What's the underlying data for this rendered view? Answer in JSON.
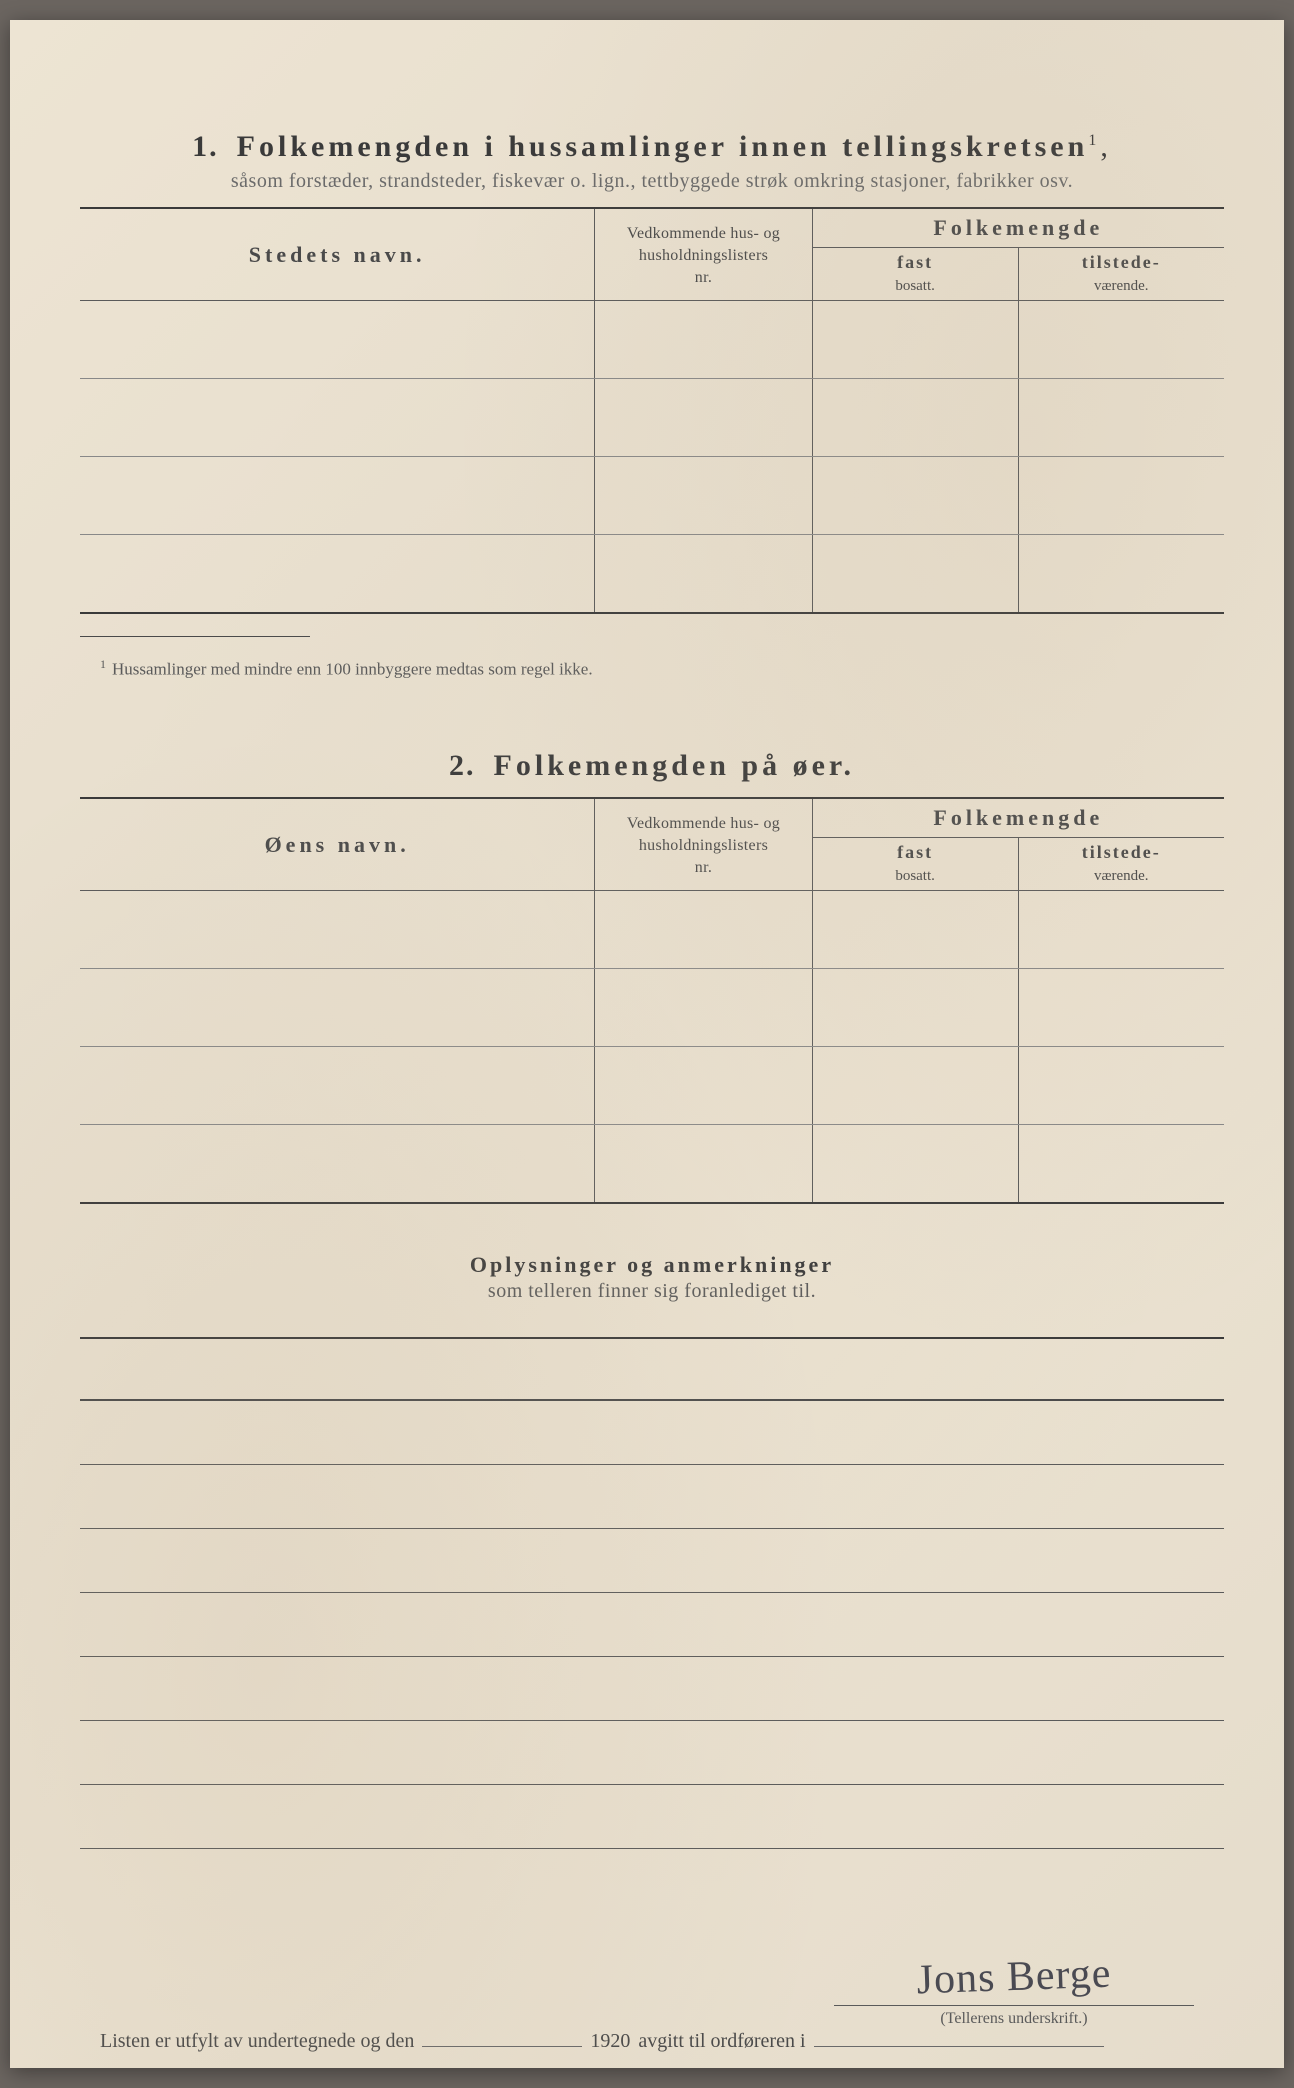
{
  "colors": {
    "paper_bg": "#ebe2d1",
    "text_primary": "#3a3a3a",
    "text_secondary": "#5a5a5a",
    "border": "#5a5a5a",
    "border_thick": "#3a3a3a"
  },
  "section1": {
    "number": "1.",
    "title": "Folkemengden i hussamlinger innen tellingskretsen",
    "title_sup": "1",
    "title_suffix": ",",
    "subtitle": "såsom forstæder, strandsteder, fiskevær o. lign., tettbyggede strøk omkring stasjoner, fabrikker osv.",
    "columns": {
      "name": "Stedets navn.",
      "ref_l1": "Vedkommende hus- og",
      "ref_l2": "husholdningslisters",
      "ref_l3": "nr.",
      "pop_header": "Folkemengde",
      "fast_l1": "fast",
      "fast_l2": "bosatt.",
      "tilst_l1": "tilstede-",
      "tilst_l2": "værende."
    },
    "num_rows": 4,
    "footnote_mark": "1",
    "footnote": "Hussamlinger med mindre enn 100 innbyggere medtas som regel ikke."
  },
  "section2": {
    "number": "2.",
    "title": "Folkemengden på øer.",
    "columns": {
      "name": "Øens navn.",
      "ref_l1": "Vedkommende hus- og",
      "ref_l2": "husholdningslisters",
      "ref_l3": "nr.",
      "pop_header": "Folkemengde",
      "fast_l1": "fast",
      "fast_l2": "bosatt.",
      "tilst_l1": "tilstede-",
      "tilst_l2": "værende."
    },
    "num_rows": 4
  },
  "section3": {
    "title": "Oplysninger og anmerkninger",
    "subtitle": "som telleren finner sig foranlediget til.",
    "num_lines": 8
  },
  "bottom": {
    "prefix": "Listen er utfylt av undertegnede og den",
    "year": "1920",
    "suffix": "avgitt til ordføreren i"
  },
  "signature": {
    "handwritten": "Jons Berge",
    "label": "(Tellerens underskrift.)"
  }
}
